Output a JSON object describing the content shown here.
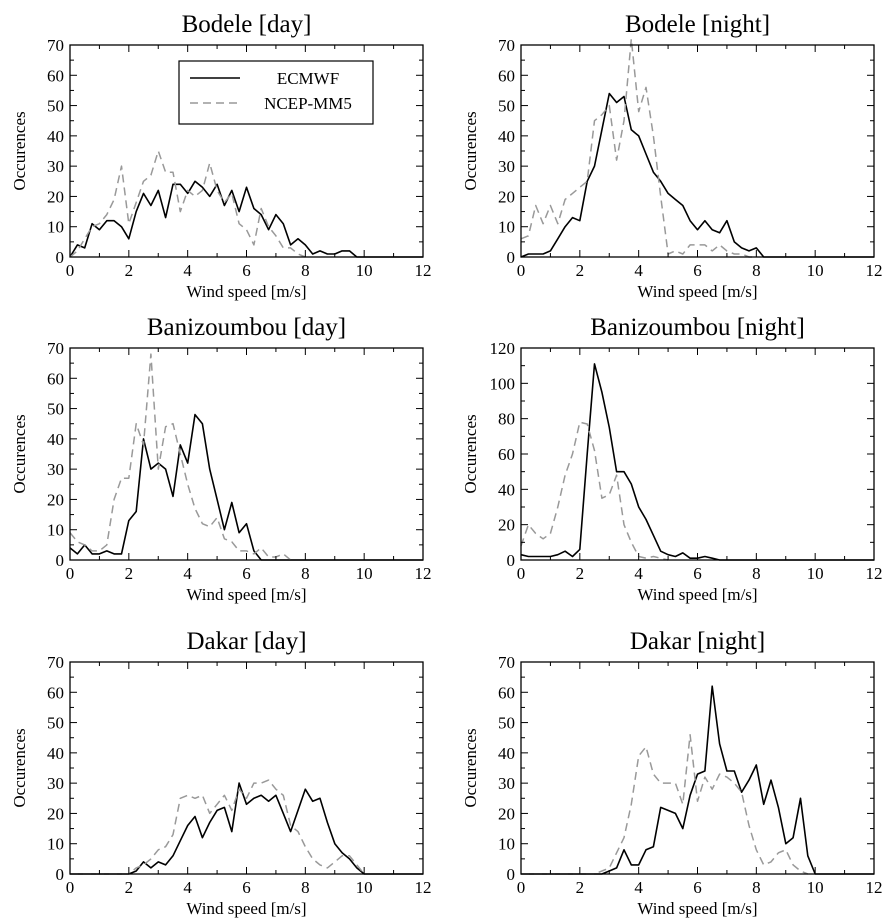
{
  "legend": {
    "entries": [
      {
        "name": "ECMWF",
        "style": "solid",
        "color": "#000000"
      },
      {
        "name": "NCEP-MM5",
        "style": "dashed",
        "color": "#999999"
      }
    ],
    "placement": "top-center of first panel"
  },
  "chart_data": [
    {
      "type": "line",
      "title": "Bodele [day]",
      "xlabel": "Wind speed [m/s]",
      "ylabel": "Occurences",
      "xlim": [
        0,
        12
      ],
      "ylim": [
        0,
        70
      ],
      "xticks": [
        0,
        2,
        4,
        6,
        8,
        10,
        12
      ],
      "yticks": [
        0,
        10,
        20,
        30,
        40,
        50,
        60,
        70
      ],
      "grid": false,
      "series": [
        {
          "name": "ECMWF",
          "x": [
            0,
            0.25,
            0.5,
            0.75,
            1,
            1.25,
            1.5,
            1.75,
            2,
            2.25,
            2.5,
            2.75,
            3,
            3.25,
            3.5,
            3.75,
            4,
            4.25,
            4.5,
            4.75,
            5,
            5.25,
            5.5,
            5.75,
            6,
            6.25,
            6.5,
            6.75,
            7,
            7.25,
            7.5,
            7.75,
            8,
            8.25,
            8.5,
            8.75,
            9,
            9.25,
            9.5,
            9.75,
            10,
            10.25,
            10.5,
            12
          ],
          "y": [
            0,
            4,
            3,
            11,
            9,
            12,
            12,
            10,
            6,
            15,
            21,
            17,
            22,
            13,
            24,
            24,
            21,
            25,
            23,
            20,
            24,
            17,
            22,
            15,
            23,
            16,
            14,
            9,
            14,
            11,
            4,
            6,
            4,
            1,
            2,
            1,
            1,
            2,
            2,
            0,
            0,
            0,
            0,
            0
          ]
        },
        {
          "name": "NCEP-MM5",
          "x": [
            0,
            0.25,
            0.5,
            0.75,
            1,
            1.25,
            1.5,
            1.75,
            2,
            2.25,
            2.5,
            2.75,
            3,
            3.25,
            3.5,
            3.75,
            4,
            4.25,
            4.5,
            4.75,
            5,
            5.25,
            5.5,
            5.75,
            6,
            6.25,
            6.5,
            6.75,
            7,
            7.25,
            7.5,
            7.75,
            8
          ],
          "y": [
            0,
            2,
            6,
            10,
            11,
            14,
            19,
            30,
            11,
            18,
            25,
            27,
            35,
            28,
            28,
            15,
            22,
            20,
            22,
            31,
            22,
            18,
            21,
            11,
            9,
            4,
            16,
            10,
            7,
            3,
            3,
            1,
            0
          ]
        }
      ]
    },
    {
      "type": "line",
      "title": "Bodele [night]",
      "xlabel": "Wind speed [m/s]",
      "ylabel": "Occurences",
      "xlim": [
        0,
        12
      ],
      "ylim": [
        0,
        70
      ],
      "xticks": [
        0,
        2,
        4,
        6,
        8,
        10,
        12
      ],
      "yticks": [
        0,
        10,
        20,
        30,
        40,
        50,
        60,
        70
      ],
      "grid": false,
      "series": [
        {
          "name": "ECMWF",
          "x": [
            0,
            0.25,
            0.5,
            0.75,
            1,
            1.25,
            1.5,
            1.75,
            2,
            2.25,
            2.5,
            2.75,
            3,
            3.25,
            3.5,
            3.75,
            4,
            4.25,
            4.5,
            4.75,
            5,
            5.25,
            5.5,
            5.75,
            6,
            6.25,
            6.5,
            6.75,
            7,
            7.25,
            7.5,
            7.75,
            8,
            8.25,
            12
          ],
          "y": [
            0,
            1,
            1,
            1,
            2,
            6,
            10,
            13,
            12,
            25,
            30,
            42,
            54,
            51,
            53,
            42,
            40,
            34,
            28,
            25,
            21,
            19,
            17,
            12,
            9,
            12,
            9,
            8,
            12,
            5,
            3,
            2,
            3,
            0,
            0
          ]
        },
        {
          "name": "NCEP-MM5",
          "x": [
            0,
            0.25,
            0.5,
            0.75,
            1,
            1.25,
            1.5,
            1.75,
            2,
            2.25,
            2.5,
            2.75,
            3,
            3.25,
            3.5,
            3.75,
            4,
            4.25,
            4.5,
            4.75,
            5,
            5.25,
            5.5,
            5.75,
            6,
            6.25,
            6.5,
            6.75,
            7,
            7.25,
            7.5,
            7.75,
            8
          ],
          "y": [
            6,
            7,
            17,
            11,
            17,
            11,
            19,
            21,
            23,
            25,
            45,
            47,
            50,
            32,
            45,
            72,
            48,
            56,
            40,
            20,
            1,
            2,
            1,
            4,
            4,
            4,
            2,
            4,
            2,
            1,
            1,
            0,
            0
          ]
        }
      ]
    },
    {
      "type": "line",
      "title": "Banizoumbou [day]",
      "xlabel": "Wind speed [m/s]",
      "ylabel": "Occurences",
      "xlim": [
        0,
        12
      ],
      "ylim": [
        0,
        70
      ],
      "xticks": [
        0,
        2,
        4,
        6,
        8,
        10,
        12
      ],
      "yticks": [
        0,
        10,
        20,
        30,
        40,
        50,
        60,
        70
      ],
      "grid": false,
      "series": [
        {
          "name": "ECMWF",
          "x": [
            0,
            0.25,
            0.5,
            0.75,
            1,
            1.25,
            1.5,
            1.75,
            2,
            2.25,
            2.5,
            2.75,
            3,
            3.25,
            3.5,
            3.75,
            4,
            4.25,
            4.5,
            4.75,
            5,
            5.25,
            5.5,
            5.75,
            6,
            6.25,
            6.5,
            12
          ],
          "y": [
            4,
            2,
            5,
            2,
            2,
            3,
            2,
            2,
            13,
            16,
            40,
            30,
            32,
            30,
            21,
            38,
            32,
            48,
            45,
            30,
            20,
            10,
            19,
            9,
            12,
            3,
            0,
            0
          ]
        },
        {
          "name": "NCEP-MM5",
          "x": [
            0,
            0.25,
            0.5,
            0.75,
            1,
            1.25,
            1.5,
            1.75,
            2,
            2.25,
            2.5,
            2.75,
            3,
            3.25,
            3.5,
            3.75,
            4,
            4.25,
            4.5,
            4.75,
            5,
            5.25,
            5.5,
            5.75,
            6,
            6.25,
            6.5,
            6.75,
            7,
            7.25,
            7.5
          ],
          "y": [
            9,
            6,
            5,
            3,
            3,
            5,
            20,
            27,
            27,
            45,
            38,
            68,
            30,
            44,
            45,
            35,
            25,
            17,
            12,
            11,
            14,
            7,
            6,
            3,
            3,
            2,
            4,
            1,
            1,
            2,
            0
          ]
        }
      ]
    },
    {
      "type": "line",
      "title": "Banizoumbou [night]",
      "xlabel": "Wind speed [m/s]",
      "ylabel": "Occurences",
      "xlim": [
        0,
        12
      ],
      "ylim": [
        0,
        120
      ],
      "xticks": [
        0,
        2,
        4,
        6,
        8,
        10,
        12
      ],
      "yticks": [
        0,
        20,
        40,
        60,
        80,
        100,
        120
      ],
      "grid": false,
      "series": [
        {
          "name": "ECMWF",
          "x": [
            0,
            0.25,
            0.5,
            0.75,
            1,
            1.25,
            1.5,
            1.75,
            2,
            2.25,
            2.5,
            2.75,
            3,
            3.25,
            3.5,
            3.75,
            4,
            4.25,
            4.5,
            4.75,
            5,
            5.25,
            5.5,
            5.75,
            6,
            6.25,
            6.5,
            6.75,
            7,
            12
          ],
          "y": [
            3,
            2,
            2,
            2,
            2,
            3,
            5,
            2,
            6,
            60,
            111,
            95,
            75,
            50,
            50,
            43,
            30,
            23,
            14,
            5,
            3,
            2,
            4,
            1,
            1,
            2,
            1,
            0,
            0,
            0
          ]
        },
        {
          "name": "NCEP-MM5",
          "x": [
            0,
            0.25,
            0.5,
            0.75,
            1,
            1.25,
            1.5,
            1.75,
            2,
            2.25,
            2.5,
            2.75,
            3,
            3.25,
            3.5,
            3.75,
            4,
            4.25,
            4.5,
            4.75,
            5
          ],
          "y": [
            8,
            20,
            15,
            12,
            15,
            30,
            48,
            60,
            78,
            77,
            62,
            35,
            37,
            48,
            20,
            10,
            2,
            1,
            2,
            1,
            0
          ]
        }
      ]
    },
    {
      "type": "line",
      "title": "Dakar [day]",
      "xlabel": "Wind speed [m/s]",
      "ylabel": "Occurences",
      "xlim": [
        0,
        12
      ],
      "ylim": [
        0,
        70
      ],
      "xticks": [
        0,
        2,
        4,
        6,
        8,
        10,
        12
      ],
      "yticks": [
        0,
        10,
        20,
        30,
        40,
        50,
        60,
        70
      ],
      "grid": false,
      "series": [
        {
          "name": "ECMWF",
          "x": [
            0,
            2,
            2.25,
            2.5,
            2.75,
            3,
            3.25,
            3.5,
            3.75,
            4,
            4.25,
            4.5,
            4.75,
            5,
            5.25,
            5.5,
            5.75,
            6,
            6.25,
            6.5,
            6.75,
            7,
            7.25,
            7.5,
            7.75,
            8,
            8.25,
            8.5,
            8.75,
            9,
            9.25,
            9.5,
            9.75,
            10,
            12
          ],
          "y": [
            0,
            0,
            1,
            4,
            2,
            4,
            3,
            6,
            11,
            16,
            19,
            12,
            17,
            21,
            22,
            14,
            30,
            23,
            25,
            26,
            24,
            26,
            20,
            14,
            21,
            28,
            24,
            25,
            17,
            10,
            7,
            5,
            2,
            0,
            0
          ]
        },
        {
          "name": "NCEP-MM5",
          "x": [
            0,
            2,
            2.25,
            2.5,
            2.75,
            3,
            3.25,
            3.5,
            3.75,
            4,
            4.25,
            4.5,
            4.75,
            5,
            5.25,
            5.5,
            5.75,
            6,
            6.25,
            6.5,
            6.75,
            7,
            7.25,
            7.5,
            7.75,
            8,
            8.25,
            8.5,
            8.75,
            9,
            9.25,
            9.5,
            9.75,
            10
          ],
          "y": [
            0,
            0,
            2,
            3,
            5,
            8,
            9,
            13,
            25,
            26,
            25,
            26,
            20,
            23,
            26,
            21,
            28,
            25,
            30,
            30,
            31,
            28,
            26,
            16,
            14,
            9,
            5,
            3,
            2,
            4,
            6,
            6,
            3,
            0
          ]
        }
      ]
    },
    {
      "type": "line",
      "title": "Dakar [night]",
      "xlabel": "Wind speed [m/s]",
      "ylabel": "Occurences",
      "xlim": [
        0,
        12
      ],
      "ylim": [
        0,
        70
      ],
      "xticks": [
        0,
        2,
        4,
        6,
        8,
        10,
        12
      ],
      "yticks": [
        0,
        10,
        20,
        30,
        40,
        50,
        60,
        70
      ],
      "grid": false,
      "series": [
        {
          "name": "ECMWF",
          "x": [
            0,
            2.75,
            3,
            3.25,
            3.5,
            3.75,
            4,
            4.25,
            4.5,
            4.75,
            5,
            5.25,
            5.5,
            5.75,
            6,
            6.25,
            6.5,
            6.75,
            7,
            7.25,
            7.5,
            7.75,
            8,
            8.25,
            8.5,
            8.75,
            9,
            9.25,
            9.5,
            9.75,
            10,
            12
          ],
          "y": [
            0,
            0,
            1,
            2,
            8,
            3,
            3,
            8,
            9,
            22,
            21,
            20,
            15,
            26,
            33,
            34,
            62,
            43,
            34,
            34,
            27,
            31,
            36,
            23,
            31,
            22,
            10,
            12,
            25,
            6,
            0,
            0
          ]
        },
        {
          "name": "NCEP-MM5",
          "x": [
            0,
            2.5,
            2.75,
            3,
            3.25,
            3.5,
            3.75,
            4,
            4.25,
            4.5,
            4.75,
            5,
            5.25,
            5.5,
            5.75,
            6,
            6.25,
            6.5,
            6.75,
            7,
            7.25,
            7.5,
            7.75,
            8,
            8.25,
            8.5,
            8.75,
            9,
            9.25,
            9.5,
            9.75
          ],
          "y": [
            0,
            0,
            1,
            2,
            7,
            12,
            23,
            39,
            42,
            33,
            30,
            30,
            30,
            23,
            46,
            24,
            32,
            28,
            33,
            32,
            30,
            27,
            16,
            8,
            3,
            4,
            7,
            8,
            3,
            1,
            0
          ]
        }
      ]
    }
  ]
}
